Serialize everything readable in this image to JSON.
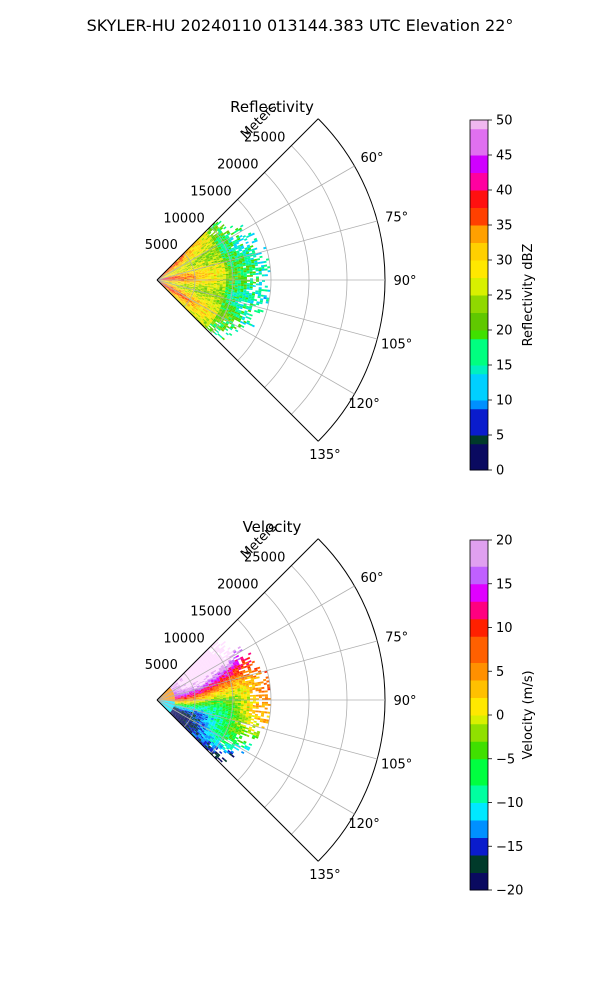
{
  "figure": {
    "title": "SKYLER-HU  20240110  013144.383 UTC Elevation 22°"
  },
  "chart_data": [
    {
      "type": "heatmap",
      "title": "Reflectivity",
      "range_label": "Meters",
      "range_ticks": [
        5000,
        10000,
        15000,
        20000,
        25000
      ],
      "range_max": 30000,
      "azimuth_range": [
        45,
        135
      ],
      "azimuth_ticks": [
        "60°",
        "75°",
        "90°",
        "105°",
        "120°",
        "135°"
      ],
      "data_extent": {
        "azimuth": [
          45,
          135
        ],
        "max_range_m": 15000
      },
      "grid": true,
      "colorbar": {
        "label": "Reflectivity dBZ",
        "limits": [
          0,
          50
        ],
        "ticks": [
          "0",
          "5",
          "10",
          "15",
          "20",
          "25",
          "30",
          "35",
          "40",
          "45",
          "50"
        ]
      },
      "colorscale": [
        [
          0,
          "#0a0a60"
        ],
        [
          3,
          "#003a2a"
        ],
        [
          5,
          "#0a1ccc"
        ],
        [
          8,
          "#0090ff"
        ],
        [
          10,
          "#00d0ff"
        ],
        [
          13,
          "#00f0c0"
        ],
        [
          15,
          "#00ff80"
        ],
        [
          18,
          "#40e000"
        ],
        [
          20,
          "#60c800"
        ],
        [
          22,
          "#90d800"
        ],
        [
          25,
          "#d8f000"
        ],
        [
          27,
          "#ffe800"
        ],
        [
          30,
          "#ffd000"
        ],
        [
          32,
          "#ffa000"
        ],
        [
          35,
          "#ff4000"
        ],
        [
          37,
          "#ff1010"
        ],
        [
          40,
          "#ff00a0"
        ],
        [
          42,
          "#d000ff"
        ],
        [
          45,
          "#e070f0"
        ],
        [
          48,
          "#f0b8f0"
        ],
        [
          50,
          "#ffe8ff"
        ]
      ]
    },
    {
      "type": "heatmap",
      "title": "Velocity",
      "range_label": "Meters",
      "range_ticks": [
        5000,
        10000,
        15000,
        20000,
        25000
      ],
      "range_max": 30000,
      "azimuth_range": [
        45,
        135
      ],
      "azimuth_ticks": [
        "60°",
        "75°",
        "90°",
        "105°",
        "120°",
        "135°"
      ],
      "data_extent": {
        "azimuth": [
          45,
          135
        ],
        "max_range_m": 15000
      },
      "grid": true,
      "colorbar": {
        "label": "Velocity (m/s)",
        "limits": [
          -20,
          20
        ],
        "ticks": [
          "−20",
          "−15",
          "−10",
          "−5",
          "0",
          "5",
          "10",
          "15",
          "20"
        ]
      },
      "colorscale": [
        [
          -20,
          "#0a0a60"
        ],
        [
          -18,
          "#003a2a"
        ],
        [
          -16,
          "#0a1ccc"
        ],
        [
          -14,
          "#0090ff"
        ],
        [
          -12,
          "#00e8ff"
        ],
        [
          -10,
          "#00ffa0"
        ],
        [
          -8,
          "#00ff40"
        ],
        [
          -5,
          "#40e000"
        ],
        [
          -3,
          "#90e000"
        ],
        [
          -1,
          "#d8f000"
        ],
        [
          0,
          "#ffe800"
        ],
        [
          2,
          "#ffc000"
        ],
        [
          4,
          "#ff9000"
        ],
        [
          6,
          "#ff6000"
        ],
        [
          9,
          "#ff2000"
        ],
        [
          11,
          "#ff0080"
        ],
        [
          13,
          "#e000ff"
        ],
        [
          15,
          "#c060ff"
        ],
        [
          17,
          "#e0a0f0"
        ],
        [
          20,
          "#ffe0ff"
        ]
      ]
    }
  ]
}
